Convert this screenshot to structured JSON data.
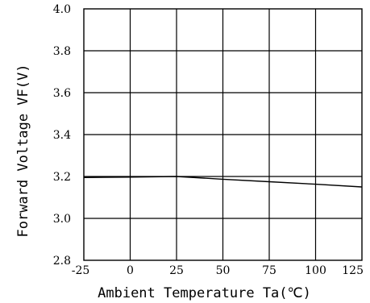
{
  "chart_data": {
    "type": "line",
    "xlabel": "Ambient Temperature Ta(℃)",
    "ylabel": "Forward Voltage VF(V)",
    "xlim": [
      -25,
      125
    ],
    "ylim": [
      2.8,
      4.0
    ],
    "x_ticks": [
      -25,
      0,
      25,
      50,
      75,
      100,
      125
    ],
    "x_tick_labels": [
      "-25",
      "0",
      "25",
      "50",
      "75",
      "100",
      "125"
    ],
    "y_ticks": [
      2.8,
      3.0,
      3.2,
      3.4,
      3.6,
      3.8,
      4.0
    ],
    "y_tick_labels": [
      "2.8",
      "3.0",
      "3.2",
      "3.4",
      "3.6",
      "3.8",
      "4.0"
    ],
    "grid": true,
    "series": [
      {
        "x": [
          -25,
          0,
          25,
          50,
          75,
          100,
          125
        ],
        "y": [
          3.195,
          3.197,
          3.2,
          3.187,
          3.175,
          3.163,
          3.15
        ]
      }
    ]
  }
}
